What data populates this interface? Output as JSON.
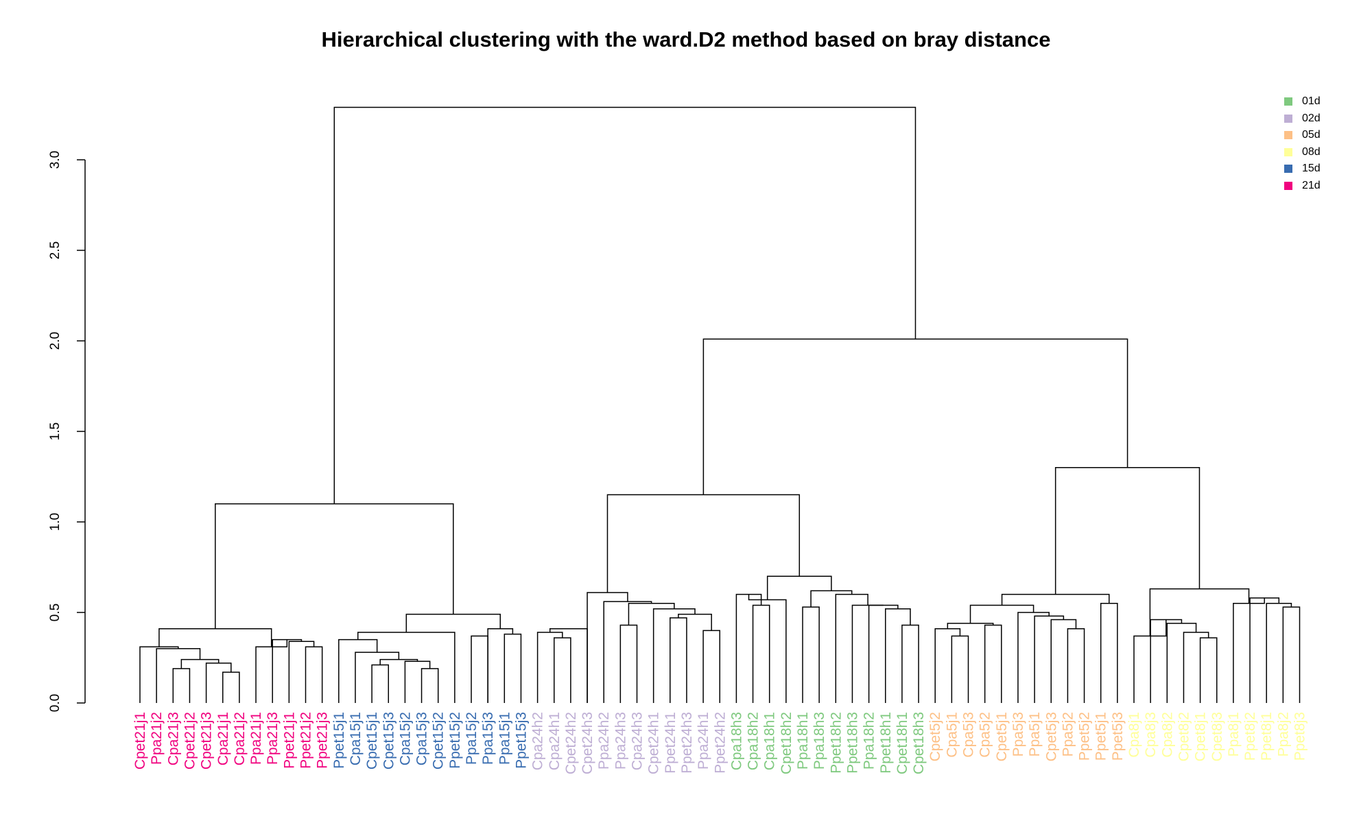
{
  "chart_data": {
    "type": "dendrogram",
    "title": "Hierarchical clustering with the ward.D2 method based on bray distance",
    "ylim": [
      0,
      3.3
    ],
    "yticks": [
      "0.0",
      "0.5",
      "1.0",
      "1.5",
      "2.0",
      "2.5",
      "3.0"
    ],
    "legend": {
      "placement": "top-right",
      "items": [
        {
          "label": "01d",
          "color": "#7fc97f"
        },
        {
          "label": "02d",
          "color": "#beaed4"
        },
        {
          "label": "05d",
          "color": "#fdc086"
        },
        {
          "label": "08d",
          "color": "#ffff99"
        },
        {
          "label": "15d",
          "color": "#386cb0"
        },
        {
          "label": "21d",
          "color": "#f0027f"
        }
      ]
    },
    "leaves": [
      {
        "label": "Cpet21j1",
        "group": "21d"
      },
      {
        "label": "Ppa21j2",
        "group": "21d"
      },
      {
        "label": "Cpa21j3",
        "group": "21d"
      },
      {
        "label": "Cpet21j2",
        "group": "21d"
      },
      {
        "label": "Cpet21j3",
        "group": "21d"
      },
      {
        "label": "Cpa21j1",
        "group": "21d"
      },
      {
        "label": "Cpa21j2",
        "group": "21d"
      },
      {
        "label": "Ppa21j1",
        "group": "21d"
      },
      {
        "label": "Ppa21j3",
        "group": "21d"
      },
      {
        "label": "Ppet21j1",
        "group": "21d"
      },
      {
        "label": "Ppet21j2",
        "group": "21d"
      },
      {
        "label": "Ppet21j3",
        "group": "21d"
      },
      {
        "label": "Ppet15j1",
        "group": "15d"
      },
      {
        "label": "Cpa15j1",
        "group": "15d"
      },
      {
        "label": "Cpet15j1",
        "group": "15d"
      },
      {
        "label": "Cpet15j3",
        "group": "15d"
      },
      {
        "label": "Cpa15j2",
        "group": "15d"
      },
      {
        "label": "Cpa15j3",
        "group": "15d"
      },
      {
        "label": "Cpet15j2",
        "group": "15d"
      },
      {
        "label": "Ppet15j2",
        "group": "15d"
      },
      {
        "label": "Ppa15j2",
        "group": "15d"
      },
      {
        "label": "Ppa15j3",
        "group": "15d"
      },
      {
        "label": "Ppa15j1",
        "group": "15d"
      },
      {
        "label": "Ppet15j3",
        "group": "15d"
      },
      {
        "label": "Cpa24h2",
        "group": "02d"
      },
      {
        "label": "Cpa24h1",
        "group": "02d"
      },
      {
        "label": "Cpet24h2",
        "group": "02d"
      },
      {
        "label": "Cpet24h3",
        "group": "02d"
      },
      {
        "label": "Ppa24h2",
        "group": "02d"
      },
      {
        "label": "Ppa24h3",
        "group": "02d"
      },
      {
        "label": "Cpa24h3",
        "group": "02d"
      },
      {
        "label": "Cpet24h1",
        "group": "02d"
      },
      {
        "label": "Ppet24h1",
        "group": "02d"
      },
      {
        "label": "Ppet24h3",
        "group": "02d"
      },
      {
        "label": "Ppa24h1",
        "group": "02d"
      },
      {
        "label": "Ppet24h2",
        "group": "02d"
      },
      {
        "label": "Cpa18h3",
        "group": "01d"
      },
      {
        "label": "Cpa18h2",
        "group": "01d"
      },
      {
        "label": "Cpa18h1",
        "group": "01d"
      },
      {
        "label": "Cpet18h2",
        "group": "01d"
      },
      {
        "label": "Ppa18h1",
        "group": "01d"
      },
      {
        "label": "Ppa18h3",
        "group": "01d"
      },
      {
        "label": "Ppet18h2",
        "group": "01d"
      },
      {
        "label": "Ppet18h3",
        "group": "01d"
      },
      {
        "label": "Ppa18h2",
        "group": "01d"
      },
      {
        "label": "Ppet18h1",
        "group": "01d"
      },
      {
        "label": "Cpet18h1",
        "group": "01d"
      },
      {
        "label": "Cpet18h3",
        "group": "01d"
      },
      {
        "label": "Cpet5j2",
        "group": "05d"
      },
      {
        "label": "Cpa5j1",
        "group": "05d"
      },
      {
        "label": "Cpa5j3",
        "group": "05d"
      },
      {
        "label": "Cpa5j2",
        "group": "05d"
      },
      {
        "label": "Cpet5j1",
        "group": "05d"
      },
      {
        "label": "Ppa5j3",
        "group": "05d"
      },
      {
        "label": "Ppa5j1",
        "group": "05d"
      },
      {
        "label": "Cpet5j3",
        "group": "05d"
      },
      {
        "label": "Ppa5j2",
        "group": "05d"
      },
      {
        "label": "Ppet5j2",
        "group": "05d"
      },
      {
        "label": "Ppet5j1",
        "group": "05d"
      },
      {
        "label": "Ppet5j3",
        "group": "05d"
      },
      {
        "label": "Cpa8j1",
        "group": "08d"
      },
      {
        "label": "Cpa8j3",
        "group": "08d"
      },
      {
        "label": "Cpa8j2",
        "group": "08d"
      },
      {
        "label": "Cpet8j2",
        "group": "08d"
      },
      {
        "label": "Cpet8j1",
        "group": "08d"
      },
      {
        "label": "Cpet8j3",
        "group": "08d"
      },
      {
        "label": "Ppa8j1",
        "group": "08d"
      },
      {
        "label": "Ppet8j2",
        "group": "08d"
      },
      {
        "label": "Ppet8j1",
        "group": "08d"
      },
      {
        "label": "Ppa8j2",
        "group": "08d"
      },
      {
        "label": "Ppet8j3",
        "group": "08d"
      }
    ],
    "merges": [
      {
        "a": 2,
        "b": 3,
        "height": 0.19
      },
      {
        "a": 5,
        "b": 6,
        "height": 0.17
      },
      {
        "a": 4,
        "b": "n1",
        "height": 0.22
      },
      {
        "a": "n0",
        "b": "n2",
        "height": 0.24
      },
      {
        "a": 1,
        "b": "n3",
        "height": 0.3
      },
      {
        "a": 0,
        "b": "n4",
        "height": 0.31
      },
      {
        "a": 10,
        "b": 11,
        "height": 0.31
      },
      {
        "a": 9,
        "b": "n6",
        "height": 0.34
      },
      {
        "a": 8,
        "b": "n7",
        "height": 0.35
      },
      {
        "a": 7,
        "b": "n8",
        "height": 0.31
      },
      {
        "a": "n5",
        "b": "n9",
        "height": 0.41
      },
      {
        "a": 14,
        "b": 15,
        "height": 0.21
      },
      {
        "a": 17,
        "b": 18,
        "height": 0.19
      },
      {
        "a": 16,
        "b": "n12",
        "height": 0.23
      },
      {
        "a": "n11",
        "b": "n13",
        "height": 0.24
      },
      {
        "a": 13,
        "b": "n14",
        "height": 0.28
      },
      {
        "a": 12,
        "b": "n15",
        "height": 0.35
      },
      {
        "a": "n16",
        "b": 19,
        "height": 0.39
      },
      {
        "a": 20,
        "b": 21,
        "height": 0.37
      },
      {
        "a": 22,
        "b": 23,
        "height": 0.38
      },
      {
        "a": 21,
        "b": "n19",
        "height": 0.41
      },
      {
        "a": "n17",
        "b": "n20",
        "height": 0.49
      },
      {
        "a": "n10",
        "b": "n21",
        "height": 1.1
      },
      {
        "a": 25,
        "b": 26,
        "height": 0.36
      },
      {
        "a": 24,
        "b": "n23",
        "height": 0.39
      },
      {
        "a": 27,
        "b": "n24",
        "height": 0.41
      },
      {
        "a": 29,
        "b": 30,
        "height": 0.43
      },
      {
        "a": 32,
        "b": 33,
        "height": 0.47
      },
      {
        "a": 34,
        "b": 35,
        "height": 0.4
      },
      {
        "a": "n27",
        "b": "n28",
        "height": 0.49
      },
      {
        "a": 31,
        "b": "n29",
        "height": 0.52
      },
      {
        "a": "n26",
        "b": "n30",
        "height": 0.55
      },
      {
        "a": 28,
        "b": "n31",
        "height": 0.56
      },
      {
        "a": 27,
        "b": "n32",
        "height": 0.61
      },
      {
        "a": 37,
        "b": 38,
        "height": 0.54
      },
      {
        "a": 36,
        "b": "n34",
        "height": 0.6
      },
      {
        "a": 39,
        "b": "n35",
        "height": 0.57
      },
      {
        "a": 40,
        "b": 41,
        "height": 0.53
      },
      {
        "a": 46,
        "b": 47,
        "height": 0.43
      },
      {
        "a": 45,
        "b": "n38",
        "height": 0.52
      },
      {
        "a": 44,
        "b": "n39",
        "height": 0.54
      },
      {
        "a": 43,
        "b": "n40",
        "height": 0.54
      },
      {
        "a": 42,
        "b": "n41",
        "height": 0.6
      },
      {
        "a": "n37",
        "b": "n42",
        "height": 0.62
      },
      {
        "a": "n36",
        "b": "n43",
        "height": 0.7
      },
      {
        "a": "n33",
        "b": "n44",
        "height": 1.15
      },
      {
        "a": 49,
        "b": 50,
        "height": 0.37
      },
      {
        "a": 48,
        "b": "n46",
        "height": 0.41
      },
      {
        "a": 51,
        "b": 52,
        "height": 0.43
      },
      {
        "a": "n47",
        "b": "n48",
        "height": 0.44
      },
      {
        "a": 56,
        "b": 57,
        "height": 0.41
      },
      {
        "a": 55,
        "b": "n50",
        "height": 0.46
      },
      {
        "a": 54,
        "b": "n51",
        "height": 0.48
      },
      {
        "a": 53,
        "b": "n52",
        "height": 0.5
      },
      {
        "a": "n49",
        "b": "n53",
        "height": 0.54
      },
      {
        "a": 58,
        "b": 59,
        "height": 0.55
      },
      {
        "a": "n54",
        "b": "n55",
        "height": 0.6
      },
      {
        "a": 64,
        "b": 65,
        "height": 0.36
      },
      {
        "a": 63,
        "b": "n57",
        "height": 0.39
      },
      {
        "a": 62,
        "b": "n58",
        "height": 0.44
      },
      {
        "a": 61,
        "b": "n59",
        "height": 0.46
      },
      {
        "a": 60,
        "b": "n60",
        "height": 0.37
      },
      {
        "a": 69,
        "b": 70,
        "height": 0.53
      },
      {
        "a": 68,
        "b": "n62",
        "height": 0.55
      },
      {
        "a": 67,
        "b": "n63",
        "height": 0.58
      },
      {
        "a": 66,
        "b": "n64",
        "height": 0.55
      },
      {
        "a": "n61",
        "b": "n65",
        "height": 0.63
      },
      {
        "a": "n56",
        "b": "n66",
        "height": 1.3
      },
      {
        "a": "n45",
        "b": "n67",
        "height": 2.01
      },
      {
        "a": "n22",
        "b": "n68",
        "height": 3.29
      }
    ]
  }
}
